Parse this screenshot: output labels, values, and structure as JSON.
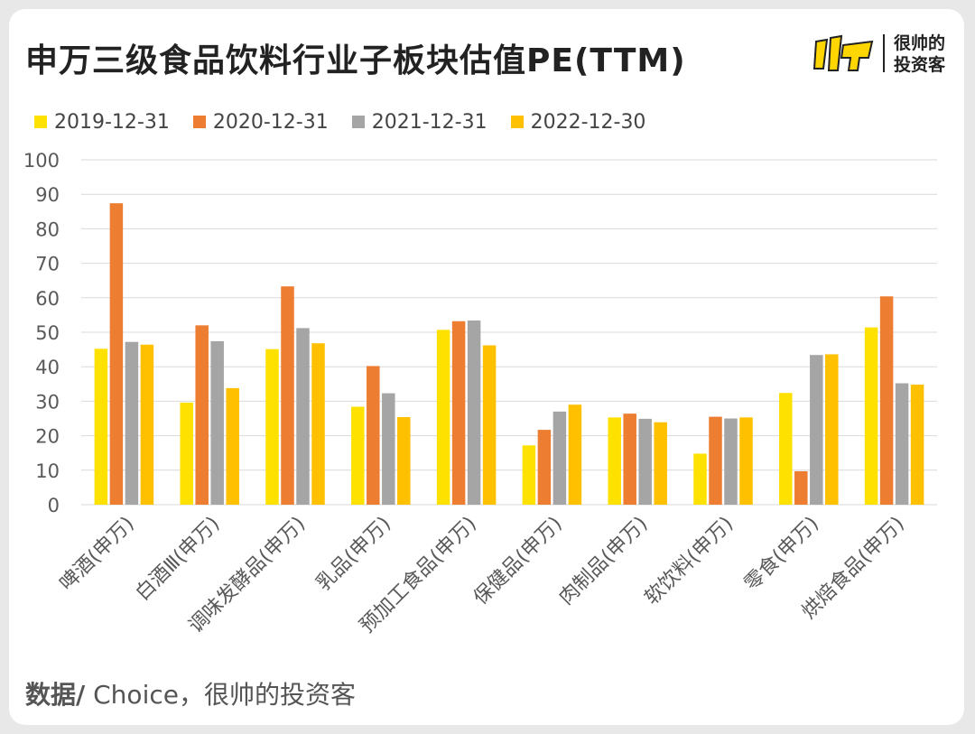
{
  "title": "申万三级食品饮料行业子板块估值PE(TTM)",
  "logo": {
    "line1": "很帅的",
    "line2": "投资客"
  },
  "footer": {
    "label": "数据/",
    "text": " Choice，很帅的投资客"
  },
  "colors": {
    "s2019": "#FFE100",
    "s2020": "#ED7D31",
    "s2021": "#A5A5A5",
    "s2022": "#FFC000",
    "grid": "#d9d9d9",
    "text": "#595959"
  },
  "chart_data": {
    "type": "bar",
    "categories": [
      "啤酒(申万)",
      "白酒Ⅲ(申万)",
      "调味发酵品(申万)",
      "乳品(申万)",
      "预加工食品(申万)",
      "保健品(申万)",
      "肉制品(申万)",
      "软饮料(申万)",
      "零食(申万)",
      "烘焙食品(申万)"
    ],
    "series": [
      {
        "name": "2019-12-31",
        "color": "#FFE100",
        "values": [
          45.2,
          29.6,
          45.1,
          28.4,
          50.7,
          17.2,
          25.3,
          14.8,
          32.4,
          51.4
        ]
      },
      {
        "name": "2020-12-31",
        "color": "#ED7D31",
        "values": [
          87.4,
          52.0,
          63.3,
          40.2,
          53.2,
          21.7,
          26.4,
          25.5,
          9.7,
          60.4
        ]
      },
      {
        "name": "2021-12-31",
        "color": "#A5A5A5",
        "values": [
          47.2,
          47.4,
          51.2,
          32.3,
          53.4,
          27.0,
          24.9,
          25.0,
          43.4,
          35.2
        ]
      },
      {
        "name": "2022-12-30",
        "color": "#FFC000",
        "values": [
          46.4,
          33.8,
          46.8,
          25.4,
          46.2,
          29.0,
          23.9,
          25.3,
          43.6,
          34.8
        ]
      }
    ],
    "ylim": [
      0,
      100
    ],
    "yticks": [
      0,
      10,
      20,
      30,
      40,
      50,
      60,
      70,
      80,
      90,
      100
    ],
    "grid": true,
    "legend_position": "top-left"
  }
}
